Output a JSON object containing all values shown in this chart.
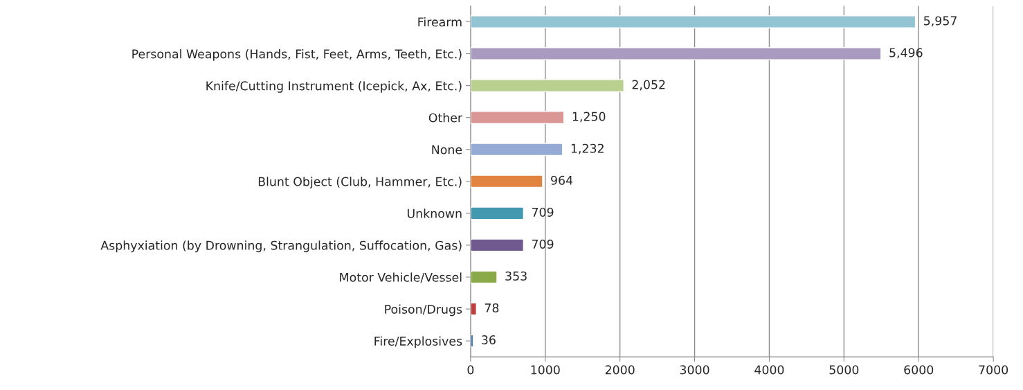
{
  "chart_data": {
    "type": "bar",
    "orientation": "horizontal",
    "categories": [
      "Firearm",
      "Personal Weapons (Hands, Fist, Feet, Arms, Teeth, Etc.)",
      "Knife/Cutting Instrument (Icepick, Ax, Etc.)",
      "Other",
      "None",
      "Blunt Object (Club, Hammer, Etc.)",
      "Unknown",
      "Asphyxiation (by Drowning, Strangulation, Suffocation, Gas)",
      "Motor Vehicle/Vessel",
      "Poison/Drugs",
      "Fire/Explosives"
    ],
    "values": [
      5957,
      5496,
      2052,
      1250,
      1232,
      964,
      709,
      709,
      353,
      78,
      36
    ],
    "colors": [
      "#93c4d3",
      "#a99bc0",
      "#b9d08f",
      "#d99694",
      "#95abd4",
      "#e0843f",
      "#4299b0",
      "#70598f",
      "#8aaa4a",
      "#b9403d",
      "#4a7ab5"
    ],
    "value_labels": [
      "5,957",
      "5,496",
      "2,052",
      "1,250",
      "1,232",
      "964",
      "709",
      "709",
      "353",
      "78",
      "36"
    ],
    "xlim": [
      0,
      7000
    ],
    "xticks": [
      0,
      1000,
      2000,
      3000,
      4000,
      5000,
      6000,
      7000
    ],
    "grid": "x",
    "legend": false
  }
}
